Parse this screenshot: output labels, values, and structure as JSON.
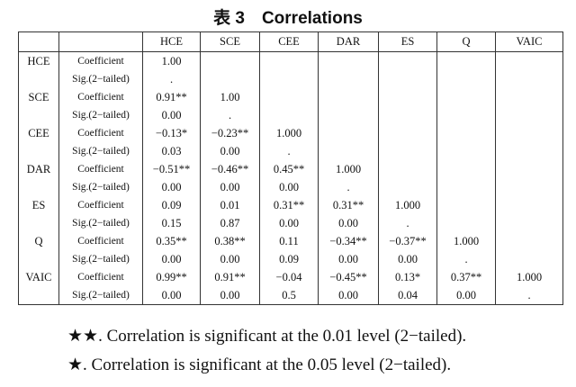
{
  "title": "表 3　Correlations",
  "table": {
    "columns": [
      "HCE",
      "SCE",
      "CEE",
      "DAR",
      "ES",
      "Q",
      "VAIC"
    ],
    "groups": [
      {
        "variable": "HCE",
        "rows": [
          {
            "label": "Coefficient",
            "cells": [
              "1.00"
            ]
          },
          {
            "label": "Sig.(2−tailed)",
            "cells": [
              "."
            ]
          }
        ]
      },
      {
        "variable": "SCE",
        "rows": [
          {
            "label": "Coefficient",
            "cells": [
              "0.91**",
              "1.00"
            ]
          },
          {
            "label": "Sig.(2−tailed)",
            "cells": [
              "0.00",
              "."
            ]
          }
        ]
      },
      {
        "variable": "CEE",
        "rows": [
          {
            "label": "Coefficient",
            "cells": [
              "−0.13*",
              "−0.23**",
              "1.000"
            ]
          },
          {
            "label": "Sig.(2−tailed)",
            "cells": [
              "0.03",
              "0.00",
              "."
            ]
          }
        ]
      },
      {
        "variable": "DAR",
        "rows": [
          {
            "label": "Coefficient",
            "cells": [
              "−0.51**",
              "−0.46**",
              "0.45**",
              "1.000"
            ]
          },
          {
            "label": "Sig.(2−tailed)",
            "cells": [
              "0.00",
              "0.00",
              "0.00",
              "."
            ]
          }
        ]
      },
      {
        "variable": "ES",
        "rows": [
          {
            "label": "Coefficient",
            "cells": [
              "0.09",
              "0.01",
              "0.31**",
              "0.31**",
              "1.000"
            ]
          },
          {
            "label": "Sig.(2−tailed)",
            "cells": [
              "0.15",
              "0.87",
              "0.00",
              "0.00",
              "."
            ]
          }
        ]
      },
      {
        "variable": "Q",
        "rows": [
          {
            "label": "Coefficient",
            "cells": [
              "0.35**",
              "0.38**",
              "0.11",
              "−0.34**",
              "−0.37**",
              "1.000"
            ]
          },
          {
            "label": "Sig.(2−tailed)",
            "cells": [
              "0.00",
              "0.00",
              "0.09",
              "0.00",
              "0.00",
              "."
            ]
          }
        ]
      },
      {
        "variable": "VAIC",
        "rows": [
          {
            "label": "Coefficient",
            "cells": [
              "0.99**",
              "0.91**",
              "−0.04",
              "−0.45**",
              "0.13*",
              "0.37**",
              "1.000"
            ]
          },
          {
            "label": "Sig.(2−tailed)",
            "cells": [
              "0.00",
              "0.00",
              "0.5",
              "0.00",
              "0.04",
              "0.00",
              "."
            ]
          }
        ]
      }
    ]
  },
  "notes": [
    "★★. Correlation is significant at the 0.01 level (2−tailed).",
    "★. Correlation is significant at the 0.05 level (2−tailed)."
  ]
}
